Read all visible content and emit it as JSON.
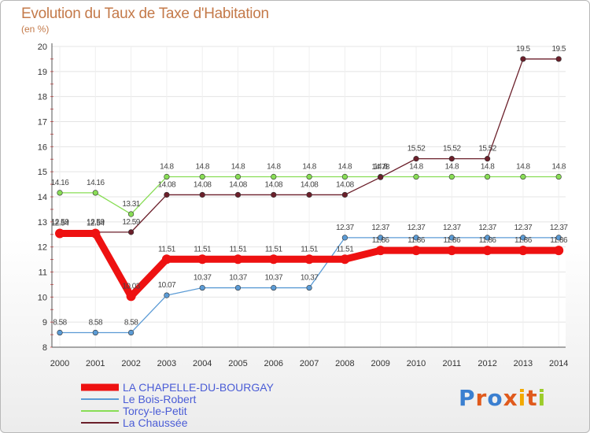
{
  "chart_data": {
    "type": "line",
    "title": "Evolution du Taux de Taxe d'Habitation",
    "ylabel": "(en %)",
    "xlabel": "",
    "ylim": [
      8,
      20
    ],
    "yticks": [
      8,
      9,
      10,
      11,
      12,
      13,
      14,
      15,
      16,
      17,
      18,
      19,
      20
    ],
    "x": [
      "2000",
      "2001",
      "2002",
      "2003",
      "2004",
      "2005",
      "2006",
      "2007",
      "2008",
      "2009",
      "2010",
      "2011",
      "2012",
      "2013",
      "2014"
    ],
    "series": [
      {
        "name": "LA CHAPELLE-DU-BOURGAY",
        "color": "#ee1111",
        "values": [
          12.54,
          12.54,
          10.03,
          11.51,
          11.51,
          11.51,
          11.51,
          11.51,
          11.51,
          11.86,
          11.86,
          11.86,
          11.86,
          11.86,
          11.86
        ],
        "labels": [
          "12.54",
          "12.54",
          "10.03",
          "11.51",
          "11.51",
          "11.51",
          "11.51",
          "11.51",
          "11.51",
          "11.86",
          "11.86",
          "11.86",
          "11.86",
          "11.86",
          "11.86"
        ]
      },
      {
        "name": "Le Bois-Robert",
        "color": "#5b9bd5",
        "values": [
          8.58,
          8.58,
          8.58,
          10.07,
          10.37,
          10.37,
          10.37,
          10.37,
          12.37,
          12.37,
          12.37,
          12.37,
          12.37,
          12.37,
          12.37
        ],
        "labels": [
          "8.58",
          "8.58",
          "8.58",
          "10.07",
          "10.37",
          "10.37",
          "10.37",
          "10.37",
          "12.37",
          "12.37",
          "12.37",
          "12.37",
          "12.37",
          "12.37",
          "12.37"
        ]
      },
      {
        "name": "Torcy-le-Petit",
        "color": "#88dd55",
        "values": [
          14.16,
          14.16,
          13.31,
          14.8,
          14.8,
          14.8,
          14.8,
          14.8,
          14.8,
          14.8,
          14.8,
          14.8,
          14.8,
          14.8,
          14.8
        ],
        "labels": [
          "14.16",
          "14.16",
          "13.31",
          "14.8",
          "14.8",
          "14.8",
          "14.8",
          "14.8",
          "14.8",
          "14.8",
          "14.8",
          "14.8",
          "14.8",
          "14.8",
          "14.8"
        ]
      },
      {
        "name": "La Chaussée",
        "color": "#6b1f2a",
        "values": [
          12.59,
          12.59,
          12.59,
          14.08,
          14.08,
          14.08,
          14.08,
          14.08,
          14.08,
          14.78,
          15.52,
          15.52,
          15.52,
          19.5,
          19.5
        ],
        "labels": [
          "12.59",
          "12.59",
          "12.59",
          "14.08",
          "14.08",
          "14.08",
          "14.08",
          "14.08",
          "14.08",
          "14.78",
          "15.52",
          "15.52",
          "15.52",
          "19.5",
          "19.5"
        ]
      }
    ]
  },
  "brand": {
    "text": "Proxiti",
    "letter_colors": [
      "#3a7fd0",
      "#e05a1c",
      "#3a7fd0",
      "#e05a1c",
      "#f2a900",
      "#e05a1c",
      "#9ccc2a"
    ]
  }
}
